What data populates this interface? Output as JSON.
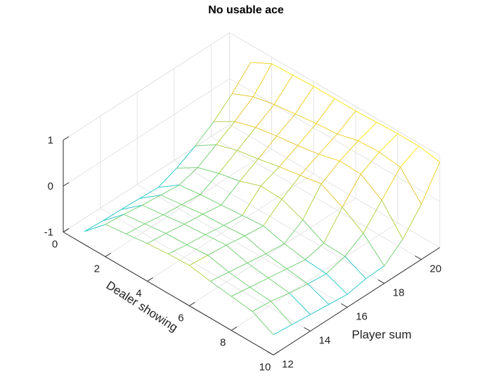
{
  "chart_data": {
    "type": "surface",
    "title": "No usable ace",
    "xlabel": "Player sum",
    "ylabel": "Dealer showing",
    "zlabel": "",
    "xlim": [
      12,
      21
    ],
    "ylim": [
      0,
      10
    ],
    "zlim": [
      -1,
      1
    ],
    "xticks": [
      12,
      14,
      16,
      18,
      20
    ],
    "yticks": [
      0,
      2,
      4,
      6,
      8,
      10
    ],
    "zticks": [
      -1,
      0,
      1
    ],
    "grid": true,
    "colormap": [
      "#00b8e6",
      "#32c8c8",
      "#78d278",
      "#b4d24b",
      "#e6c832",
      "#f0d228",
      "#fae61e"
    ],
    "player_sum": [
      12,
      13,
      14,
      15,
      16,
      17,
      18,
      19,
      20,
      21
    ],
    "dealer_showing": [
      1,
      2,
      3,
      4,
      5,
      6,
      7,
      8,
      9,
      10
    ],
    "z": [
      [
        -0.72,
        -0.75,
        -0.76,
        -0.78,
        -0.8,
        -0.64,
        -0.42,
        -0.15,
        0.2,
        0.62
      ],
      [
        -0.3,
        -0.34,
        -0.4,
        -0.44,
        -0.48,
        -0.36,
        -0.12,
        0.12,
        0.4,
        0.86
      ],
      [
        -0.24,
        -0.28,
        -0.34,
        -0.38,
        -0.42,
        -0.22,
        0.02,
        0.26,
        0.5,
        0.88
      ],
      [
        -0.18,
        -0.22,
        -0.28,
        -0.32,
        -0.38,
        -0.12,
        0.1,
        0.34,
        0.56,
        0.9
      ],
      [
        -0.14,
        -0.2,
        -0.24,
        -0.3,
        -0.34,
        0.04,
        0.2,
        0.4,
        0.62,
        0.9
      ],
      [
        -0.12,
        -0.16,
        -0.2,
        -0.26,
        -0.3,
        0.02,
        0.28,
        0.48,
        0.66,
        0.9
      ],
      [
        -0.2,
        -0.26,
        -0.32,
        -0.38,
        -0.42,
        -0.16,
        0.36,
        0.6,
        0.78,
        0.92
      ],
      [
        -0.26,
        -0.32,
        -0.38,
        -0.44,
        -0.5,
        -0.4,
        0.12,
        0.58,
        0.8,
        0.94
      ],
      [
        -0.32,
        -0.36,
        -0.44,
        -0.5,
        -0.54,
        -0.42,
        -0.18,
        0.28,
        0.74,
        0.94
      ],
      [
        -0.56,
        -0.6,
        -0.64,
        -0.68,
        -0.72,
        -0.64,
        -0.62,
        -0.3,
        0.2,
        0.86
      ]
    ]
  }
}
